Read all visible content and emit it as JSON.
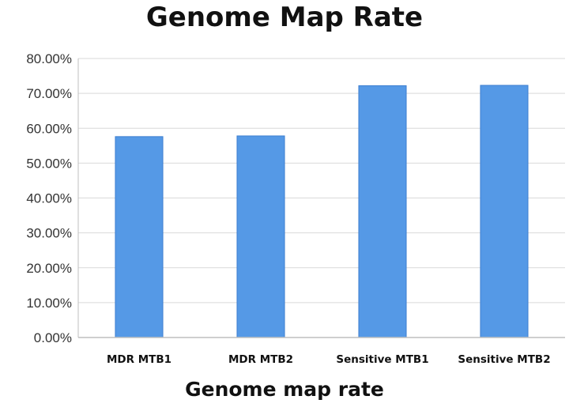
{
  "chart_data": {
    "type": "bar",
    "title": "Genome Map Rate",
    "xlabel": "Genome map rate",
    "ylabel": "",
    "categories": [
      "MDR MTB1",
      "MDR MTB2",
      "Sensitive MTB1",
      "Sensitive MTB2"
    ],
    "values": [
      0.576,
      0.578,
      0.722,
      0.723
    ],
    "ylim": [
      0,
      0.8
    ],
    "yticks": [
      "0.00%",
      "10.00%",
      "20.00%",
      "30.00%",
      "40.00%",
      "50.00%",
      "60.00%",
      "70.00%",
      "80.00%"
    ],
    "grid": true,
    "legend": "none",
    "colors": {
      "bar": "#5599e6",
      "bar_edge": "#3d7fd0",
      "grid": "#d9d9d9",
      "axis": "#bfbfbf"
    }
  }
}
